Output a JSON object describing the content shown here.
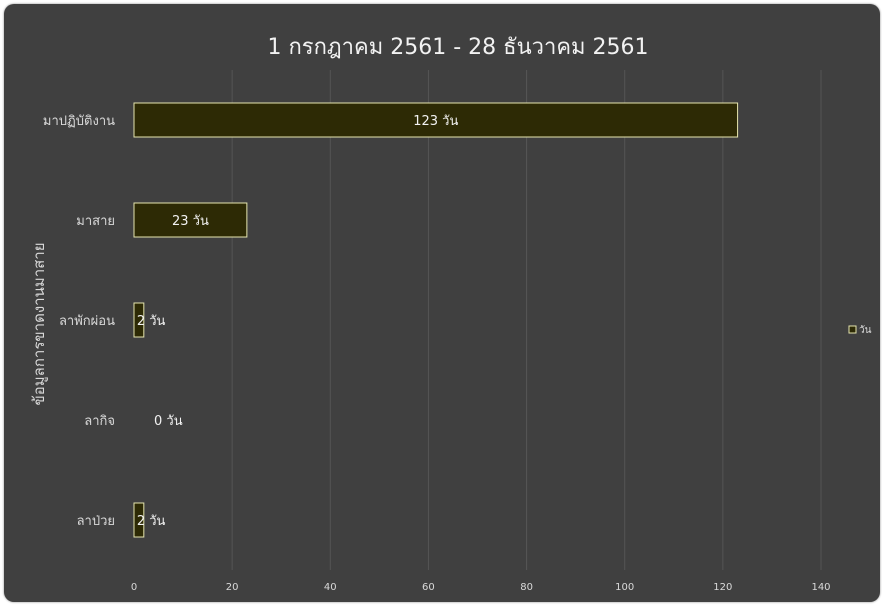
{
  "chart_data": {
    "type": "bar",
    "orientation": "horizontal",
    "title": "1 กรกฎาคม 2561 - 28 ธันวาคม 2561",
    "ylabel": "ข้อมูลการขาดงานมาสาย",
    "xlabel": "",
    "categories": [
      "มาปฏิบัติงาน",
      "มาสาย",
      "ลาพักผ่อน",
      "ลากิจ",
      "ลาป่วย"
    ],
    "series": [
      {
        "name": "วัน",
        "values": [
          123,
          23,
          2,
          0,
          2
        ],
        "labels": [
          "123 วัน",
          "23 วัน",
          "2 วัน",
          "0 วัน",
          "2 วัน"
        ]
      }
    ],
    "xlim": [
      0,
      140
    ],
    "xticks": [
      "0",
      "20",
      "40",
      "60",
      "80",
      "100",
      "120",
      "140"
    ],
    "grid": true,
    "legend": "right",
    "colors": {
      "bar": "#2d2a05",
      "bar_edge": "#e6e6b0",
      "background": "#404040",
      "grid": "#555555"
    }
  }
}
